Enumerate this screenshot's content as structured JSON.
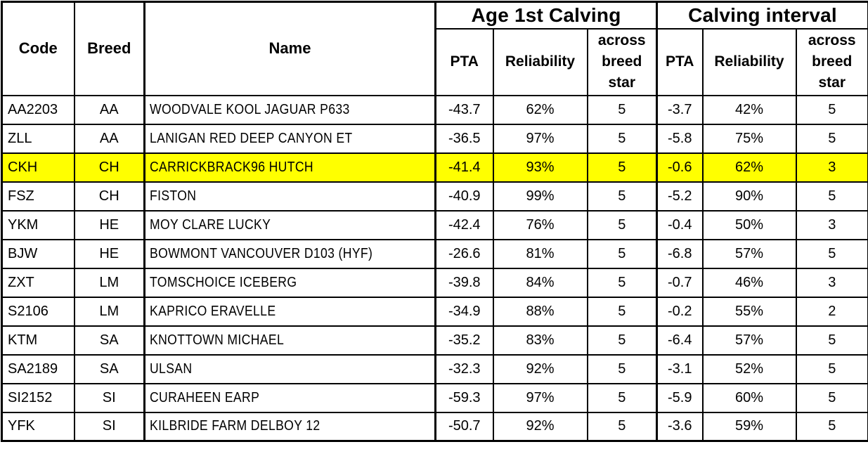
{
  "table": {
    "base_headers": [
      "Code",
      "Breed",
      "Name"
    ],
    "groups": [
      {
        "label": "Age 1st Calving",
        "sub_headers": [
          "PTA",
          "Reliability",
          "across breed star"
        ]
      },
      {
        "label": "Calving interval",
        "sub_headers": [
          "PTA",
          "Reliability",
          "across breed star"
        ]
      }
    ],
    "highlighted_row_code": "CKH",
    "colors": {
      "highlight": "#ffff00",
      "border": "#000000",
      "text": "#000000",
      "background": "#ffffff"
    },
    "rows": [
      {
        "highlighted": false,
        "cells": [
          "AA2203",
          "AA",
          "WOODVALE KOOL JAGUAR P633",
          "-43.7",
          "62%",
          "5",
          "-3.7",
          "42%",
          "5"
        ]
      },
      {
        "highlighted": false,
        "cells": [
          "ZLL",
          "AA",
          "LANIGAN RED DEEP CANYON ET",
          "-36.5",
          "97%",
          "5",
          "-5.8",
          "75%",
          "5"
        ]
      },
      {
        "highlighted": true,
        "cells": [
          "CKH",
          "CH",
          "CARRICKBRACK96 HUTCH",
          "-41.4",
          "93%",
          "5",
          "-0.6",
          "62%",
          "3"
        ]
      },
      {
        "highlighted": false,
        "cells": [
          "FSZ",
          "CH",
          "FISTON",
          "-40.9",
          "99%",
          "5",
          "-5.2",
          "90%",
          "5"
        ]
      },
      {
        "highlighted": false,
        "cells": [
          "YKM",
          "HE",
          "MOY CLARE LUCKY",
          "-42.4",
          "76%",
          "5",
          "-0.4",
          "50%",
          "3"
        ]
      },
      {
        "highlighted": false,
        "cells": [
          "BJW",
          "HE",
          "BOWMONT VANCOUVER D103 (HYF)",
          "-26.6",
          "81%",
          "5",
          "-6.8",
          "57%",
          "5"
        ]
      },
      {
        "highlighted": false,
        "cells": [
          "ZXT",
          "LM",
          "TOMSCHOICE ICEBERG",
          "-39.8",
          "84%",
          "5",
          "-0.7",
          "46%",
          "3"
        ]
      },
      {
        "highlighted": false,
        "cells": [
          "S2106",
          "LM",
          "KAPRICO ERAVELLE",
          "-34.9",
          "88%",
          "5",
          "-0.2",
          "55%",
          "2"
        ]
      },
      {
        "highlighted": false,
        "cells": [
          "KTM",
          "SA",
          "KNOTTOWN MICHAEL",
          "-35.2",
          "83%",
          "5",
          "-6.4",
          "57%",
          "5"
        ]
      },
      {
        "highlighted": false,
        "cells": [
          "SA2189",
          "SA",
          "ULSAN",
          "-32.3",
          "92%",
          "5",
          "-3.1",
          "52%",
          "5"
        ]
      },
      {
        "highlighted": false,
        "cells": [
          "SI2152",
          "SI",
          "CURAHEEN EARP",
          "-59.3",
          "97%",
          "5",
          "-5.9",
          "60%",
          "5"
        ]
      },
      {
        "highlighted": false,
        "cells": [
          "YFK",
          "SI",
          "KILBRIDE FARM DELBOY 12",
          "-50.7",
          "92%",
          "5",
          "-3.6",
          "59%",
          "5"
        ]
      }
    ]
  }
}
